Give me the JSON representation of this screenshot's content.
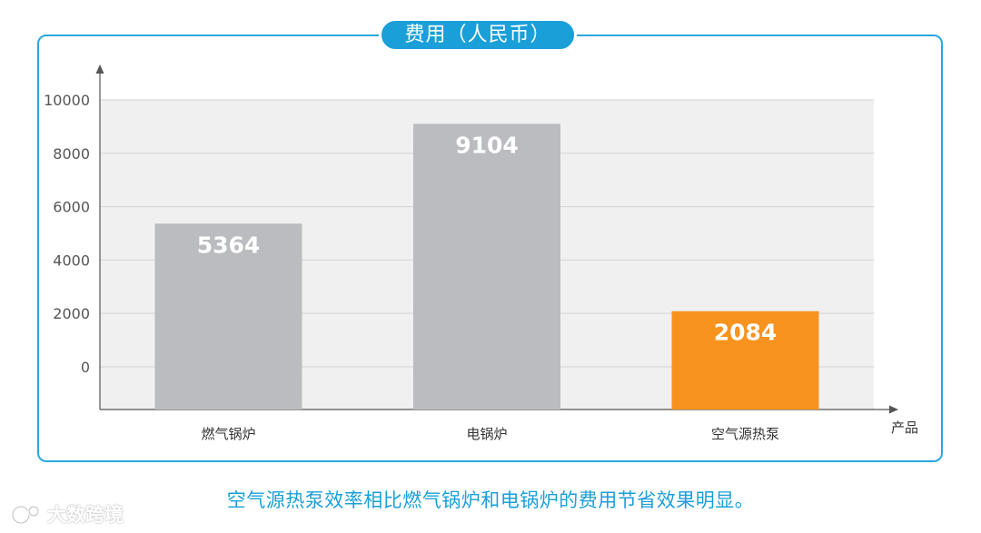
{
  "chart_data": {
    "type": "bar",
    "title": "费用（人民币）",
    "xlabel": "产品",
    "ylabel": "",
    "categories": [
      "燃气锅炉",
      "电锅炉",
      "空气源热泵"
    ],
    "values": [
      5364,
      9104,
      2084
    ],
    "data_labels": [
      "5364",
      "9104",
      "2084"
    ],
    "y_ticks": [
      0,
      2000,
      4000,
      6000,
      8000,
      10000
    ],
    "y_tick_labels": [
      "0",
      "2000",
      "4000",
      "6000",
      "8000",
      "10000"
    ],
    "ylim": [
      -1600,
      10000
    ],
    "grid": true,
    "colors": {
      "bar_default": "#bbbcc0",
      "bar_highlight": "#f7931e",
      "plot_background": "#f0f0f1",
      "gridline": "#d2d2d4",
      "axis": "#555555",
      "accent": "#1a9fd9"
    },
    "highlight_index": 2
  },
  "caption": "空气源热泵效率相比燃气锅炉和电锅炉的费用节省效果明显。",
  "watermark": {
    "text": "大数跨境",
    "icon": "logo-icon"
  }
}
